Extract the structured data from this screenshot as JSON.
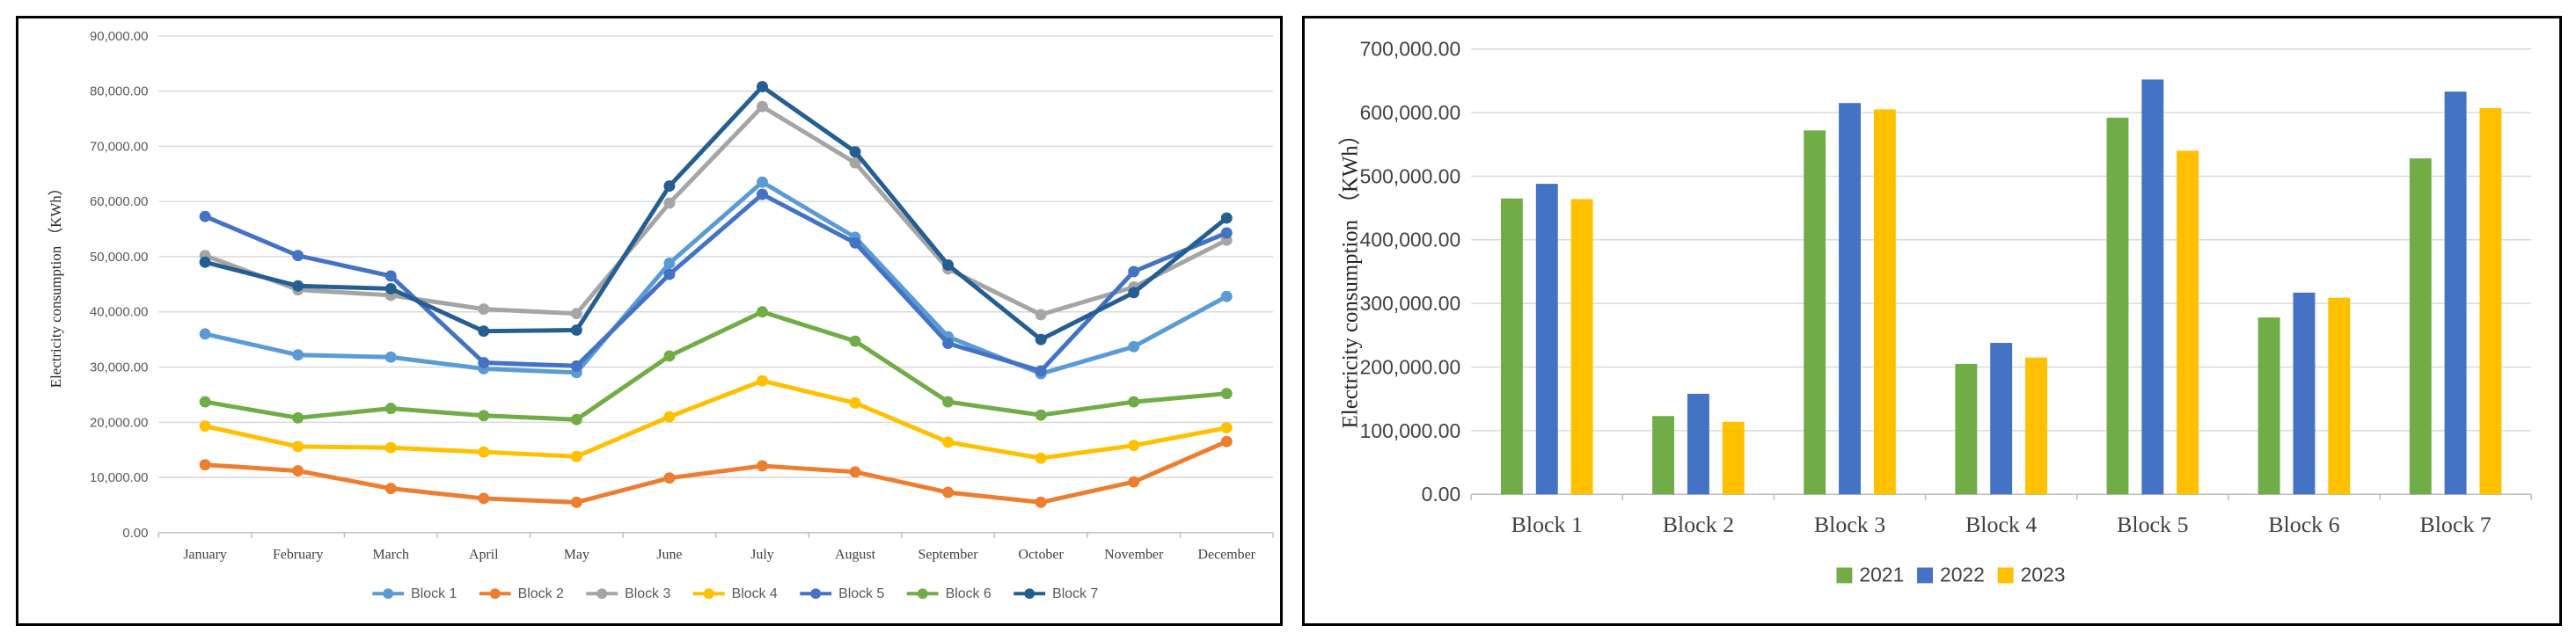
{
  "chart_data": [
    {
      "type": "line",
      "title": "",
      "xlabel": "",
      "ylabel": "Electricity consumption （KWh）",
      "categories": [
        "January",
        "February",
        "March",
        "April",
        "May",
        "June",
        "July",
        "August",
        "September",
        "October",
        "November",
        "December"
      ],
      "ylim": [
        0,
        90000
      ],
      "yticks": [
        "0.00",
        "10,000.00",
        "20,000.00",
        "30,000.00",
        "40,000.00",
        "50,000.00",
        "60,000.00",
        "70,000.00",
        "80,000.00",
        "90,000.00"
      ],
      "grid": true,
      "legend": "bottom",
      "series": [
        {
          "name": "Block 1",
          "color": "#5B9BD5",
          "values": [
            36000,
            32200,
            31800,
            29700,
            29000,
            48800,
            63500,
            53500,
            35500,
            28800,
            33700,
            42800
          ]
        },
        {
          "name": "Block 2",
          "color": "#ED7D31",
          "values": [
            12300,
            11200,
            8000,
            6200,
            5500,
            9900,
            12100,
            11000,
            7300,
            5500,
            9200,
            16500
          ]
        },
        {
          "name": "Block 3",
          "color": "#A5A5A5",
          "values": [
            50200,
            44000,
            43000,
            40500,
            39700,
            59700,
            77200,
            67000,
            47800,
            39500,
            44500,
            53000
          ]
        },
        {
          "name": "Block 4",
          "color": "#FFC000",
          "values": [
            19300,
            15600,
            15400,
            14600,
            13800,
            21000,
            27500,
            23500,
            16400,
            13500,
            15800,
            19000
          ]
        },
        {
          "name": "Block 5",
          "color": "#4472C4",
          "values": [
            57300,
            50200,
            46500,
            30800,
            30200,
            46800,
            61300,
            52500,
            34300,
            29300,
            47300,
            54300
          ]
        },
        {
          "name": "Block 6",
          "color": "#70AD47",
          "values": [
            23700,
            20800,
            22500,
            21200,
            20500,
            32000,
            40000,
            34700,
            23700,
            21300,
            23700,
            25200
          ]
        },
        {
          "name": "Block 7",
          "color": "#255E91",
          "values": [
            49000,
            44700,
            44200,
            36500,
            36700,
            62800,
            80800,
            69000,
            48500,
            35000,
            43500,
            57000
          ]
        }
      ]
    },
    {
      "type": "bar",
      "title": "",
      "xlabel": "",
      "ylabel": "Electricity consumption （KWh）",
      "categories": [
        "Block 1",
        "Block 2",
        "Block 3",
        "Block 4",
        "Block 5",
        "Block 6",
        "Block 7"
      ],
      "ylim": [
        0,
        700000
      ],
      "yticks": [
        "0.00",
        "100,000.00",
        "200,000.00",
        "300,000.00",
        "400,000.00",
        "500,000.00",
        "600,000.00",
        "700,000.00"
      ],
      "grid": true,
      "legend": "bottom",
      "series": [
        {
          "name": "2021",
          "color": "#70AD47",
          "values": [
            465000,
            123000,
            572000,
            205000,
            592000,
            278000,
            528000
          ]
        },
        {
          "name": "2022",
          "color": "#4472C4",
          "values": [
            488000,
            158000,
            615000,
            238000,
            652000,
            317000,
            633000
          ]
        },
        {
          "name": "2023",
          "color": "#FFC000",
          "values": [
            464000,
            114000,
            605000,
            215000,
            540000,
            309000,
            607000
          ]
        }
      ]
    }
  ]
}
